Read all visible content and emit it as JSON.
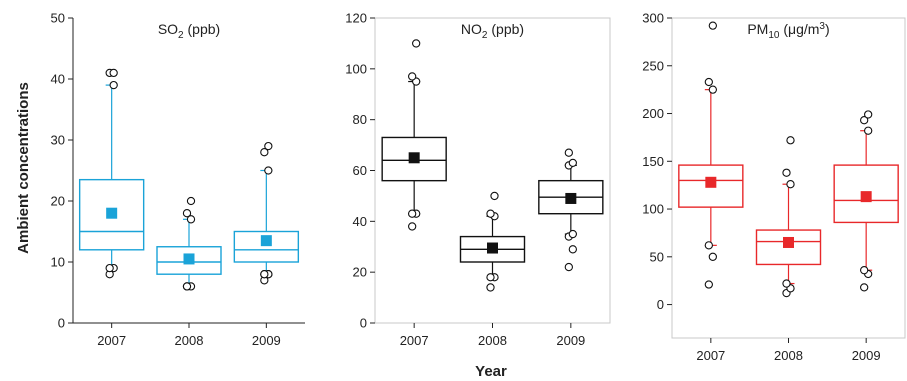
{
  "ylabel": "Ambient concentrations",
  "xlabel": "Year",
  "chart_data": [
    {
      "type": "box",
      "title": "SO",
      "title_sub": "2",
      "title_unit": " (ppb)",
      "color": "#1aa3d8",
      "mean_color": "#1aa3d8",
      "ylim": [
        0,
        50
      ],
      "yticks": [
        0,
        10,
        20,
        30,
        40,
        50
      ],
      "categories": [
        "2007",
        "2008",
        "2009"
      ],
      "boxes": [
        {
          "year": "2007",
          "whisker_low": 9,
          "q1": 12,
          "median": 15,
          "q3": 23.5,
          "whisker_high": 39,
          "mean": 18,
          "outliers": [
            8,
            9,
            9,
            39,
            41,
            41
          ]
        },
        {
          "year": "2008",
          "whisker_low": 6,
          "q1": 8,
          "median": 10,
          "q3": 12.5,
          "whisker_high": 17,
          "mean": 10.5,
          "outliers": [
            6,
            6,
            6,
            17,
            18,
            20
          ]
        },
        {
          "year": "2009",
          "whisker_low": 8,
          "q1": 10,
          "median": 12,
          "q3": 15,
          "whisker_high": 25,
          "mean": 13.5,
          "outliers": [
            7,
            8,
            8,
            8,
            8,
            25,
            28,
            29
          ]
        }
      ]
    },
    {
      "type": "box",
      "title": "NO",
      "title_sub": "2",
      "title_unit": " (ppb)",
      "color": "#111111",
      "mean_color": "#111111",
      "ylim": [
        0,
        120
      ],
      "yticks": [
        0,
        20,
        40,
        60,
        80,
        100,
        120
      ],
      "categories": [
        "2007",
        "2008",
        "2009"
      ],
      "boxes": [
        {
          "year": "2007",
          "whisker_low": 43,
          "q1": 56,
          "median": 64,
          "q3": 73,
          "whisker_high": 95,
          "mean": 65,
          "outliers": [
            38,
            43,
            43,
            95,
            97,
            110
          ]
        },
        {
          "year": "2008",
          "whisker_low": 18,
          "q1": 24,
          "median": 29,
          "q3": 34,
          "whisker_high": 42,
          "mean": 29.5,
          "outliers": [
            14,
            18,
            18,
            42,
            43,
            50
          ]
        },
        {
          "year": "2009",
          "whisker_low": 35,
          "q1": 43,
          "median": 49.5,
          "q3": 56,
          "whisker_high": 62,
          "mean": 49,
          "outliers": [
            22,
            29,
            34,
            35,
            62,
            63,
            67
          ]
        }
      ]
    },
    {
      "type": "box",
      "title": "PM",
      "title_sub": "10",
      "title_unit": " (μg/m",
      "title_sup": "3",
      "title_close": ")",
      "color": "#e8282a",
      "mean_color": "#e8282a",
      "ylim": [
        -35,
        300
      ],
      "yticks": [
        0,
        50,
        100,
        150,
        200,
        250,
        300
      ],
      "categories": [
        "2007",
        "2008",
        "2009"
      ],
      "boxes": [
        {
          "year": "2007",
          "whisker_low": 62,
          "q1": 102,
          "median": 130,
          "q3": 146,
          "whisker_high": 225,
          "mean": 128,
          "outliers": [
            21,
            50,
            62,
            225,
            233,
            292
          ]
        },
        {
          "year": "2008",
          "whisker_low": 22,
          "q1": 42,
          "median": 66,
          "q3": 78,
          "whisker_high": 126,
          "mean": 65,
          "outliers": [
            12,
            17,
            22,
            126,
            138,
            172
          ]
        },
        {
          "year": "2009",
          "whisker_low": 36,
          "q1": 86,
          "median": 109,
          "q3": 146,
          "whisker_high": 182,
          "mean": 113,
          "outliers": [
            18,
            32,
            36,
            182,
            193,
            199
          ]
        }
      ]
    }
  ]
}
